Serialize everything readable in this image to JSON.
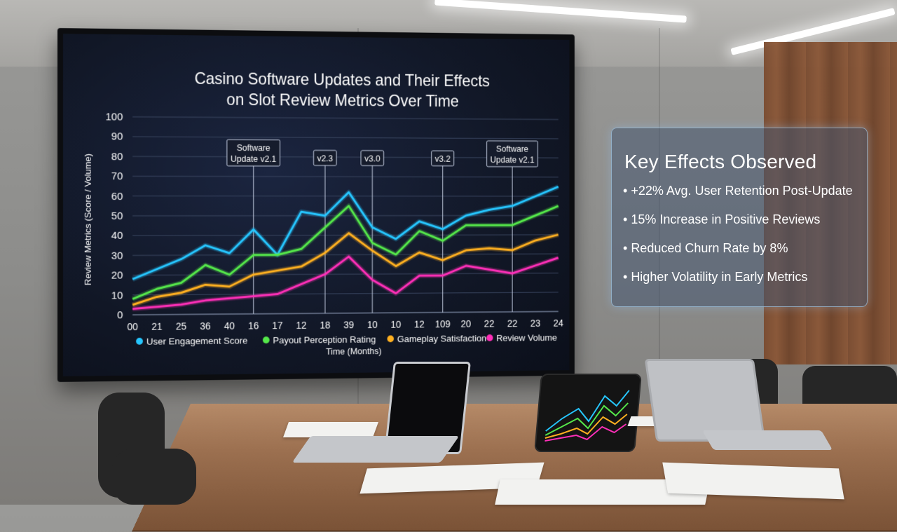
{
  "chart_data": {
    "type": "line",
    "title_line1": "Casino Software Updates and Their Effects",
    "title_line2": "on Slot Review Metrics Over Time",
    "xlabel": "Time (Months)",
    "ylabel": "Review Metrics (Score / Volume)",
    "ylim": [
      0,
      100
    ],
    "yticks": [
      "0",
      "10",
      "20",
      "30",
      "40",
      "50",
      "60",
      "70",
      "80",
      "90",
      "100"
    ],
    "x_tick_labels": [
      "00",
      "21",
      "25",
      "36",
      "40",
      "16",
      "17",
      "12",
      "18",
      "39",
      "10",
      "10",
      "12",
      "109",
      "20",
      "22",
      "22",
      "23",
      "24"
    ],
    "grid": true,
    "legend_position": "bottom",
    "annotations": [
      {
        "label_line1": "Software",
        "label_line2": "Update v2.1",
        "at_index": 5
      },
      {
        "label_line1": "v2.3",
        "label_line2": "",
        "at_index": 8
      },
      {
        "label_line1": "v3.0",
        "label_line2": "",
        "at_index": 10
      },
      {
        "label_line1": "v3.2",
        "label_line2": "",
        "at_index": 13
      },
      {
        "label_line1": "Software",
        "label_line2": "Update v2.1",
        "at_index": 16
      }
    ],
    "series": [
      {
        "name": "User Engagement Score",
        "color": "#26c6ff",
        "values": [
          18,
          23,
          28,
          35,
          31,
          43,
          30,
          52,
          50,
          62,
          44,
          38,
          47,
          43,
          50,
          53,
          55,
          60,
          65
        ]
      },
      {
        "name": "Payout Perception Rating",
        "color": "#55e84a",
        "values": [
          8,
          13,
          16,
          25,
          20,
          30,
          30,
          33,
          44,
          55,
          36,
          30,
          42,
          37,
          45,
          45,
          45,
          50,
          55
        ]
      },
      {
        "name": "Gameplay Satisfaction",
        "color": "#ffb020",
        "values": [
          5,
          9,
          11,
          15,
          14,
          20,
          22,
          24,
          31,
          41,
          32,
          24,
          31,
          27,
          32,
          33,
          32,
          37,
          40
        ]
      },
      {
        "name": "Review Volume",
        "color": "#ff2fb8",
        "values": [
          3,
          4,
          5,
          7,
          8,
          9,
          10,
          15,
          20,
          29,
          17,
          10,
          19,
          19,
          24,
          22,
          20,
          24,
          28
        ]
      }
    ]
  },
  "panel": {
    "title": "Key Effects Observed",
    "items": [
      "+22% Avg. User Retention Post-Update",
      "15% Increase in Positive Reviews",
      "Reduced Churn Rate by 8%",
      "Higher Volatility in Early Metrics"
    ]
  }
}
